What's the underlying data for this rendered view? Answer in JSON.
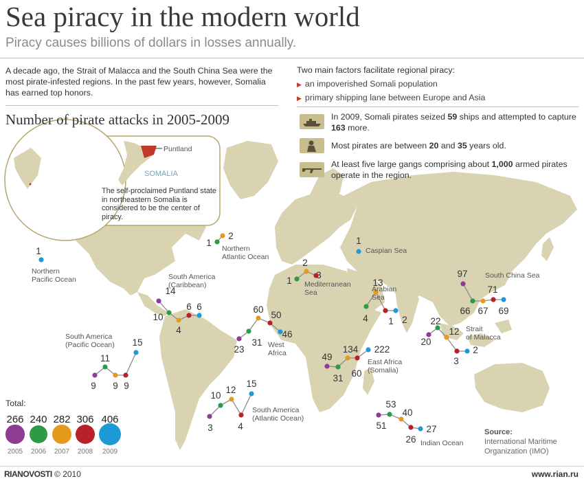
{
  "header": {
    "title": "Sea piracy in the modern world",
    "subtitle": "Piracy causes billions of dollars in losses annually."
  },
  "intro": "A decade ago, the Strait of Malacca and the South China Sea were the most pirate-infested regions. In the past few years, however, Somalia has earned top honors.",
  "factors": {
    "heading": "Two main factors facilitate regional piracy:",
    "items": [
      "an impoverished Somali population",
      "primary shipping lane between Europe and Asia"
    ]
  },
  "facts": [
    {
      "icon": "ship-icon",
      "parts": [
        "In 2009, Somali pirates seized ",
        "59",
        " ships and attempted to capture ",
        "163",
        " more."
      ]
    },
    {
      "icon": "pirate-icon",
      "parts": [
        "Most pirates are between ",
        "20",
        " and ",
        "35",
        " years old."
      ]
    },
    {
      "icon": "rifle-icon",
      "parts": [
        "At least five large gangs comprising about ",
        "1,000",
        " armed pirates operate in the region."
      ]
    }
  ],
  "chart_title": "Number of pirate attacks in 2005-2009",
  "inset": {
    "puntland_label": "Puntland",
    "somalia_label": "SOMALIA",
    "note": "The self-proclaimed Puntland state in northeastern Somalia is considered to be the center of piracy."
  },
  "colors": {
    "2005": "#8e3c91",
    "2006": "#2e9a46",
    "2007": "#e49a1c",
    "2008": "#b8202a",
    "2009": "#1d9ad6",
    "land": "#d9d3b2",
    "accent": "#c0392b"
  },
  "chart_data": {
    "type": "line",
    "years": [
      "2005",
      "2006",
      "2007",
      "2008",
      "2009"
    ],
    "series": [
      {
        "name": "Northern Pacific Ocean",
        "values": [
          null,
          null,
          null,
          null,
          1
        ]
      },
      {
        "name": "Northern Atlantic Ocean",
        "values": [
          null,
          1,
          2,
          null,
          null
        ]
      },
      {
        "name": "South America (Caribbean)",
        "values": [
          14,
          10,
          4,
          6,
          6
        ]
      },
      {
        "name": "South America (Pacific Ocean)",
        "values": [
          9,
          11,
          9,
          9,
          15
        ]
      },
      {
        "name": "South America (Atlantic Ocean)",
        "values": [
          3,
          10,
          12,
          4,
          15
        ]
      },
      {
        "name": "West Africa",
        "values": [
          23,
          31,
          60,
          50,
          46
        ]
      },
      {
        "name": "Mediterranean Sea",
        "values": [
          null,
          1,
          2,
          3,
          null
        ]
      },
      {
        "name": "Caspian Sea",
        "values": [
          null,
          null,
          null,
          null,
          1
        ]
      },
      {
        "name": "Arabian Sea",
        "values": [
          null,
          4,
          13,
          1,
          2
        ]
      },
      {
        "name": "East Africa (Somalia)",
        "values": [
          49,
          31,
          60,
          134,
          222
        ]
      },
      {
        "name": "Strait of Malacca",
        "values": [
          20,
          22,
          12,
          3,
          2
        ]
      },
      {
        "name": "South China Sea",
        "values": [
          97,
          66,
          67,
          71,
          69
        ]
      },
      {
        "name": "Indian Ocean",
        "values": [
          51,
          53,
          40,
          26,
          27
        ]
      }
    ],
    "totals": {
      "label": "Total:",
      "values": [
        266,
        240,
        282,
        306,
        406
      ]
    }
  },
  "source": {
    "label": "Source:",
    "text": "International Maritime Organization (IMO)"
  },
  "footer": {
    "brand": "RIANOVOSTI",
    "copyright": "© 2010",
    "url": "www.rian.ru"
  }
}
